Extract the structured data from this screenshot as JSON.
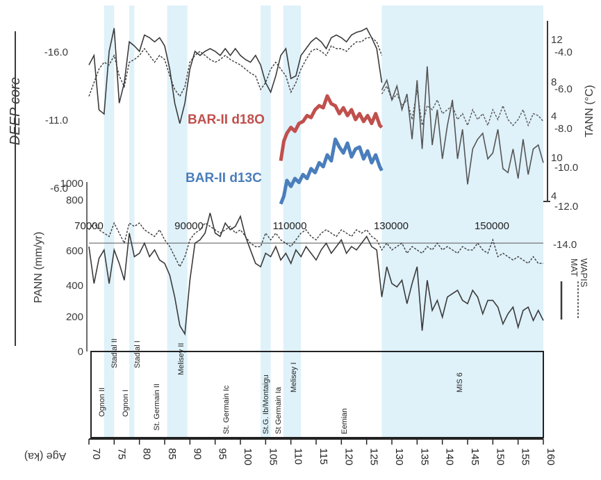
{
  "colors": {
    "band": "#dff1f9",
    "ink": "#3a3a3a",
    "d18o": "#c0504d",
    "d13c": "#4a7ebb"
  },
  "left_panel": {
    "title": "DEEP core",
    "ticks": [
      "-16.0",
      "-11.0",
      "-6.0"
    ]
  },
  "upper_right": {
    "label": "TANN (°C)",
    "outer_ticks": [
      "-4.0",
      "-6.0",
      "-8.0",
      "-10.0",
      "-12.0",
      "-14.0"
    ],
    "inner_ticks": [
      "12",
      "8",
      "4",
      "10",
      "4"
    ]
  },
  "pann": {
    "label": "PANN (mm/yr)",
    "ticks": [
      "1000",
      "800",
      "600",
      "400",
      "200",
      "0"
    ]
  },
  "mid_axis_ticks": [
    "70000",
    "90000",
    "110000",
    "130000",
    "150000"
  ],
  "side_legend": {
    "solid": "MAT",
    "dashed": "WAPIS"
  },
  "series_labels": {
    "d18o": "BAR-II d18O",
    "d13c": "BAR-II d13C"
  },
  "bottom_axis": {
    "label": "Age (ka)",
    "ticks": [
      "70",
      "75",
      "80",
      "85",
      "90",
      "95",
      "100",
      "105",
      "110",
      "115",
      "120",
      "125",
      "130",
      "135",
      "140",
      "145",
      "150",
      "155",
      "160"
    ]
  },
  "chart_data": {
    "type": "line",
    "xlabel": "Age (ka)",
    "xlim": [
      70,
      160
    ],
    "stadials": [
      {
        "name": "Ognon II",
        "from": 73.0,
        "to": 75.0
      },
      {
        "name": "Stadial II",
        "from": 73.0,
        "to": 75.0
      },
      {
        "name": "Ognon I",
        "from": 78.0,
        "to": 79.0
      },
      {
        "name": "Stadial I",
        "from": 78.0,
        "to": 79.0
      },
      {
        "name": "St. Germain II",
        "from": 85.5,
        "to": 89.5
      },
      {
        "name": "Melisey II",
        "from": 85.5,
        "to": 89.5
      },
      {
        "name": "St. Germain Ic",
        "from": 96.0,
        "to": 96.0
      },
      {
        "name": "St.G. Ib/Montaigu",
        "from": 104.0,
        "to": 106.0
      },
      {
        "name": "St Germain Ia",
        "from": 106.5,
        "to": 108.5
      },
      {
        "name": "Melisey I",
        "from": 108.5,
        "to": 112.0
      },
      {
        "name": "Eemian",
        "from": 118.0,
        "to": 118.0
      },
      {
        "name": "MIS 6",
        "from": 128.0,
        "to": 160.0
      }
    ],
    "series": [
      {
        "name": "BAR-II d18O",
        "x": [
          108.0,
          108.6,
          109.2,
          110.0,
          110.8,
          111.6,
          112.4,
          113.2,
          114.0,
          114.8,
          115.6,
          116.4,
          117.2,
          118.0,
          118.8,
          119.6,
          120.4,
          121.2,
          122.0,
          122.8,
          123.6,
          124.4,
          125.2,
          126.0,
          126.8,
          127.6,
          128.0
        ],
        "y": [
          -9.6,
          -8.6,
          -8.2,
          -7.9,
          -8.1,
          -7.7,
          -7.6,
          -7.3,
          -7.4,
          -7.0,
          -6.8,
          -6.9,
          -6.3,
          -6.7,
          -6.8,
          -7.2,
          -6.9,
          -7.3,
          -7.0,
          -7.5,
          -7.2,
          -7.6,
          -7.3,
          -7.7,
          -7.2,
          -7.8,
          -7.9
        ]
      },
      {
        "name": "BAR-II d13C",
        "x": [
          108.0,
          108.6,
          109.2,
          110.0,
          110.8,
          111.6,
          112.4,
          113.2,
          114.0,
          114.8,
          115.6,
          116.4,
          117.2,
          118.0,
          118.8,
          119.6,
          120.4,
          121.2,
          122.0,
          122.8,
          123.6,
          124.4,
          125.2,
          126.0,
          126.8,
          127.6,
          128.0
        ],
        "y": [
          -11.8,
          -11.4,
          -10.6,
          -10.9,
          -10.5,
          -10.7,
          -10.3,
          -10.5,
          -10.0,
          -10.2,
          -9.7,
          -9.9,
          -9.3,
          -9.6,
          -8.5,
          -8.9,
          -9.2,
          -8.7,
          -9.4,
          -9.0,
          -8.9,
          -9.5,
          -9.1,
          -9.7,
          -9.3,
          -9.9,
          -10.1
        ]
      },
      {
        "name": "DEEP core solid",
        "x": [
          70,
          71,
          72,
          73,
          74,
          75,
          76,
          77,
          78,
          79,
          80,
          81,
          82,
          83,
          84,
          85,
          86,
          87,
          88,
          89,
          90,
          91,
          92,
          93,
          94,
          95,
          96,
          97,
          98,
          99,
          100,
          101,
          102,
          103,
          104,
          105,
          106,
          107,
          108,
          109,
          110,
          111,
          112,
          113,
          114,
          115,
          116,
          117,
          118,
          119,
          120,
          121,
          122,
          123,
          124,
          125,
          126,
          127,
          128
        ],
        "y": [
          -14.8,
          -15.5,
          -11.5,
          -11.2,
          -15.8,
          -17.5,
          -12.0,
          -13.5,
          -16.5,
          -16.2,
          -15.8,
          -17.0,
          -16.8,
          -16.5,
          -16.8,
          -16.2,
          -14.5,
          -12.0,
          -10.5,
          -12.0,
          -14.5,
          -15.8,
          -15.5,
          -15.8,
          -16.0,
          -15.8,
          -15.5,
          -16.0,
          -15.5,
          -16.0,
          -15.5,
          -15.2,
          -15.0,
          -15.5,
          -14.8,
          -13.5,
          -12.8,
          -14.0,
          -15.5,
          -16.0,
          -13.8,
          -14.0,
          -15.5,
          -16.0,
          -16.5,
          -16.8,
          -16.5,
          -16.0,
          -16.8,
          -17.0,
          -16.8,
          -16.5,
          -17.0,
          -17.2,
          -17.3,
          -17.5,
          -16.8,
          -16.0,
          -13.5
        ]
      },
      {
        "name": "DEEP core dashed",
        "x": [
          70,
          71,
          72,
          73,
          74,
          75,
          76,
          77,
          78,
          79,
          80,
          81,
          82,
          83,
          84,
          85,
          86,
          87,
          88,
          89,
          90,
          91,
          92,
          93,
          94,
          95,
          96,
          97,
          98,
          99,
          100,
          101,
          102,
          103,
          104,
          105,
          106,
          107,
          108,
          109,
          110,
          111,
          112,
          113,
          114,
          115,
          116,
          117,
          118,
          119,
          120,
          121,
          122,
          123,
          124,
          125,
          126,
          127,
          128
        ],
        "y": [
          -12.5,
          -13.5,
          -14.5,
          -15.0,
          -14.8,
          -15.5,
          -14.0,
          -13.2,
          -15.0,
          -15.2,
          -15.5,
          -16.0,
          -15.5,
          -15.0,
          -15.5,
          -15.2,
          -14.0,
          -13.0,
          -12.5,
          -13.2,
          -15.0,
          -15.5,
          -15.8,
          -15.5,
          -15.2,
          -15.0,
          -15.2,
          -15.5,
          -15.2,
          -15.0,
          -14.8,
          -14.5,
          -14.2,
          -14.0,
          -13.0,
          -13.5,
          -14.5,
          -15.0,
          -14.5,
          -14.0,
          -12.8,
          -13.5,
          -14.5,
          -15.2,
          -15.8,
          -16.0,
          -15.8,
          -15.5,
          -16.2,
          -16.0,
          -16.0,
          -15.8,
          -16.2,
          -16.5,
          -16.5,
          -16.8,
          -16.8,
          -16.5,
          -15.5
        ]
      },
      {
        "name": "TANN solid",
        "x": [
          128,
          129,
          130,
          131,
          132,
          133,
          134,
          135,
          136,
          137,
          138,
          139,
          140,
          141,
          142,
          143,
          144,
          145,
          146,
          147,
          148,
          149,
          150,
          151,
          152,
          153,
          154,
          155,
          156,
          157,
          158,
          159,
          160
        ],
        "y": [
          -6.0,
          -5.5,
          -6.5,
          -5.8,
          -7.0,
          -6.2,
          -8.5,
          -5.5,
          -9.0,
          -4.8,
          -8.8,
          -7.0,
          -9.5,
          -7.8,
          -6.5,
          -9.5,
          -8.0,
          -10.8,
          -9.0,
          -8.5,
          -8.2,
          -9.5,
          -9.2,
          -8.0,
          -10.0,
          -10.2,
          -9.0,
          -10.5,
          -8.5,
          -10.3,
          -9.0,
          -8.8,
          -9.7
        ]
      },
      {
        "name": "TANN dashed",
        "x": [
          128,
          129,
          130,
          131,
          132,
          133,
          134,
          135,
          136,
          137,
          138,
          139,
          140,
          141,
          142,
          143,
          144,
          145,
          146,
          147,
          148,
          149,
          150,
          151,
          152,
          153,
          154,
          155,
          156,
          157,
          158,
          159,
          160
        ],
        "y": [
          -6.2,
          -5.8,
          -6.5,
          -6.2,
          -6.8,
          -6.5,
          -7.5,
          -6.0,
          -7.8,
          -6.8,
          -7.0,
          -6.5,
          -7.2,
          -7.0,
          -6.8,
          -7.5,
          -7.2,
          -7.8,
          -7.0,
          -7.5,
          -7.2,
          -7.8,
          -7.0,
          -7.5,
          -6.8,
          -7.5,
          -7.8,
          -7.5,
          -7.0,
          -7.8,
          -7.2,
          -7.3,
          -7.6
        ]
      },
      {
        "name": "PANN solid",
        "x": [
          70,
          71,
          72,
          73,
          74,
          75,
          76,
          77,
          78,
          79,
          80,
          81,
          82,
          83,
          84,
          85,
          86,
          87,
          88,
          89,
          90,
          91,
          92,
          93,
          94,
          95,
          96,
          97,
          98,
          99,
          100,
          101,
          102,
          103,
          104,
          105,
          106,
          107,
          108,
          109,
          110,
          111,
          112,
          113,
          114,
          115,
          116,
          117,
          118,
          119,
          120,
          121,
          122,
          123,
          124,
          125,
          126,
          127,
          128,
          129,
          130,
          131,
          132,
          133,
          134,
          135,
          136,
          137,
          138,
          139,
          140,
          141,
          142,
          143,
          144,
          145,
          146,
          147,
          148,
          149,
          150,
          151,
          152,
          153,
          154,
          155,
          156,
          157,
          158,
          159,
          160
        ],
        "y": [
          620,
          400,
          550,
          600,
          400,
          600,
          520,
          420,
          700,
          560,
          580,
          640,
          560,
          600,
          540,
          520,
          450,
          320,
          150,
          100,
          420,
          640,
          660,
          700,
          820,
          700,
          680,
          760,
          720,
          740,
          800,
          680,
          600,
          520,
          500,
          580,
          560,
          620,
          540,
          580,
          520,
          600,
          560,
          620,
          580,
          540,
          600,
          640,
          580,
          620,
          660,
          580,
          620,
          600,
          640,
          680,
          620,
          600,
          320,
          500,
          400,
          380,
          420,
          280,
          400,
          500,
          120,
          420,
          240,
          300,
          200,
          320,
          340,
          360,
          300,
          280,
          360,
          320,
          220,
          300,
          300,
          260,
          160,
          220,
          260,
          140,
          240,
          260,
          180,
          240,
          180
        ]
      },
      {
        "name": "PANN dashed",
        "x": [
          70,
          71,
          72,
          73,
          74,
          75,
          76,
          77,
          78,
          79,
          80,
          81,
          82,
          83,
          84,
          85,
          86,
          87,
          88,
          89,
          90,
          91,
          92,
          93,
          94,
          95,
          96,
          97,
          98,
          99,
          100,
          101,
          102,
          103,
          104,
          105,
          106,
          107,
          108,
          109,
          110,
          111,
          112,
          113,
          114,
          115,
          116,
          117,
          118,
          119,
          120,
          121,
          122,
          123,
          124,
          125,
          126,
          127,
          128,
          129,
          130,
          131,
          132,
          133,
          134,
          135,
          136,
          137,
          138,
          139,
          140,
          141,
          142,
          143,
          144,
          145,
          146,
          147,
          148,
          149,
          150,
          151,
          152,
          153,
          154,
          155,
          156,
          157,
          158,
          159,
          160
        ],
        "y": [
          720,
          760,
          720,
          700,
          680,
          760,
          700,
          640,
          760,
          740,
          760,
          720,
          700,
          680,
          720,
          660,
          620,
          560,
          500,
          560,
          660,
          700,
          720,
          760,
          740,
          720,
          700,
          720,
          740,
          700,
          720,
          680,
          640,
          620,
          620,
          700,
          660,
          700,
          660,
          640,
          620,
          660,
          700,
          720,
          680,
          660,
          700,
          720,
          700,
          680,
          720,
          700,
          680,
          720,
          700,
          720,
          680,
          660,
          600,
          640,
          600,
          620,
          640,
          580,
          620,
          600,
          580,
          620,
          600,
          640,
          600,
          620,
          600,
          580,
          620,
          600,
          600,
          640,
          600,
          580,
          660,
          560,
          580,
          560,
          540,
          560,
          540,
          520,
          560,
          520,
          520
        ]
      }
    ]
  }
}
